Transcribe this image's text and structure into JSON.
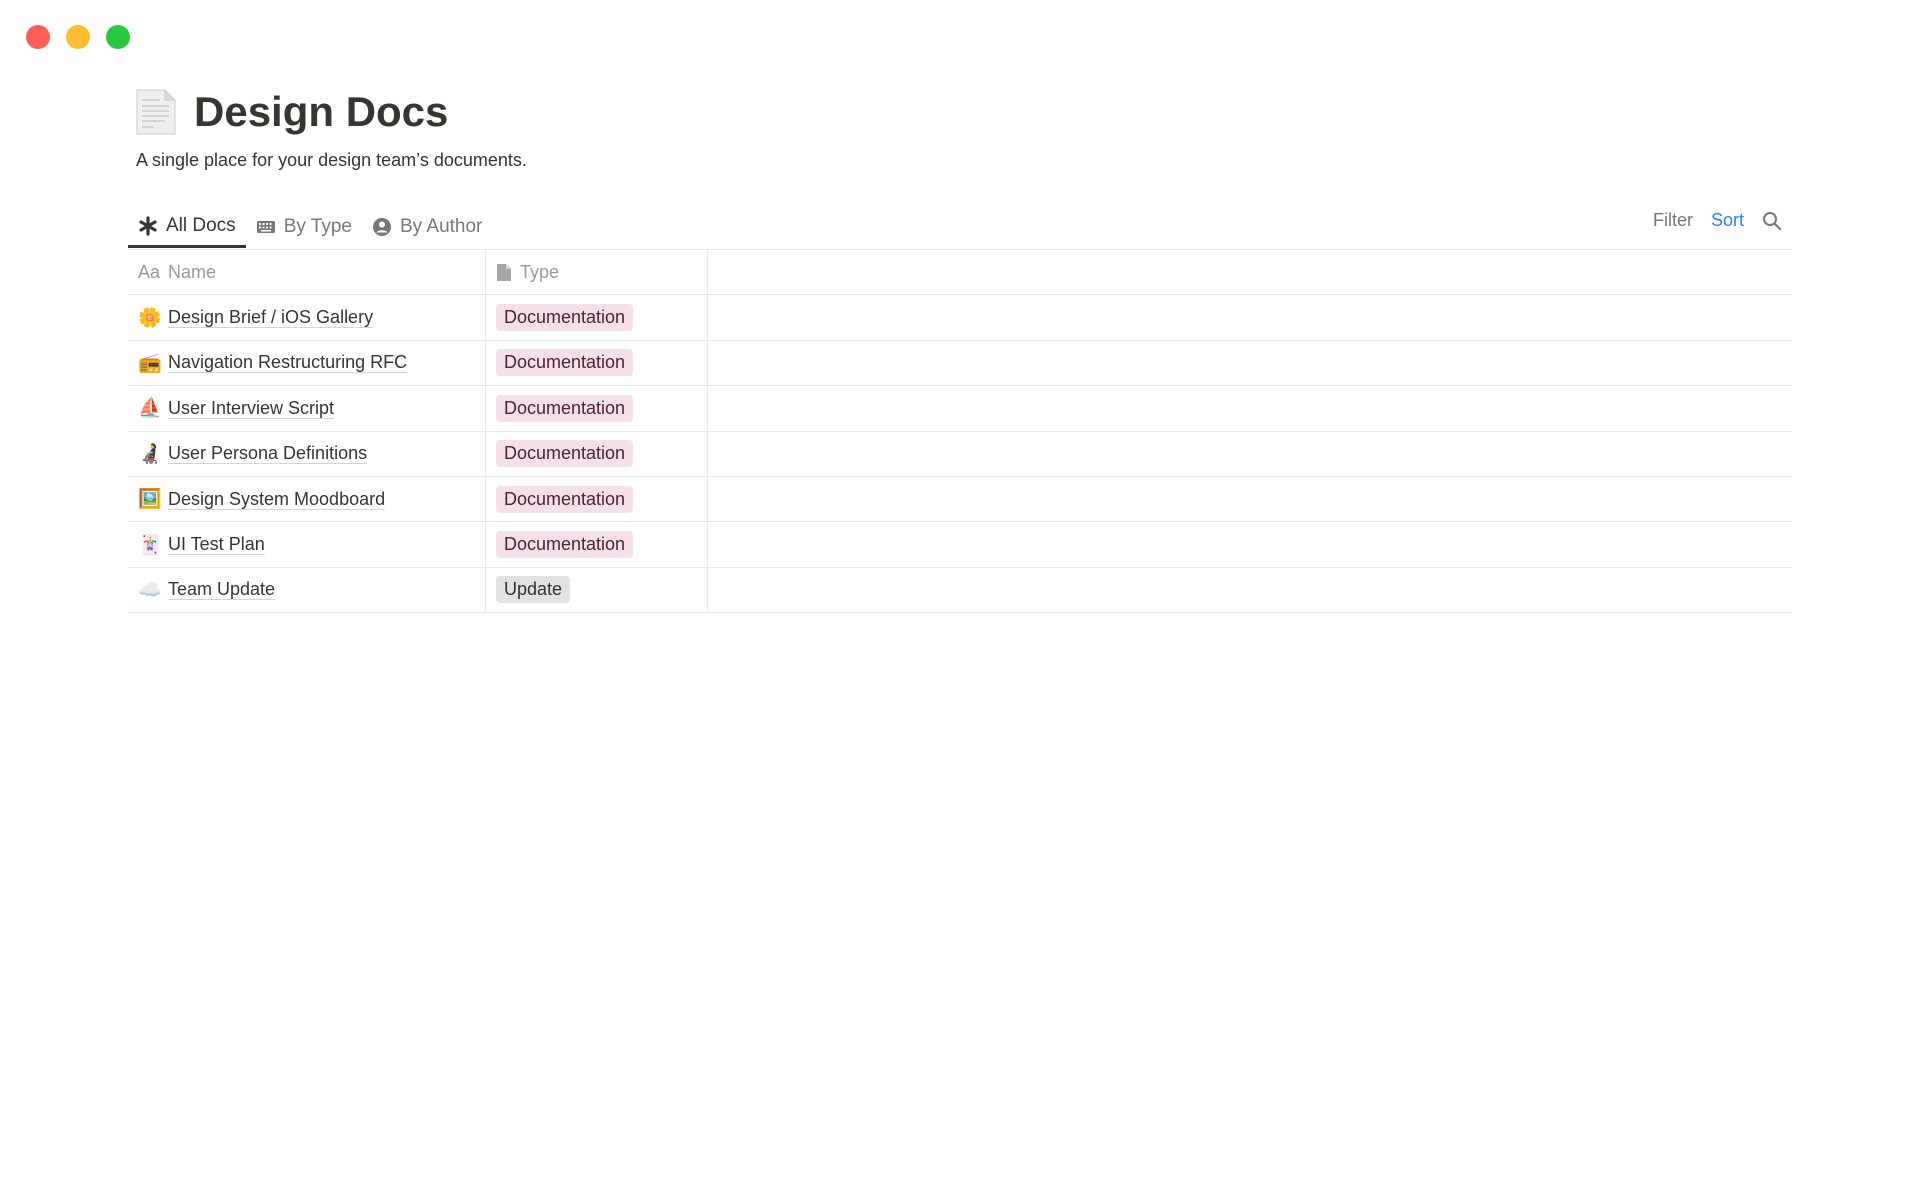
{
  "window": {
    "controls": [
      {
        "name": "close",
        "color": "#ff5f57"
      },
      {
        "name": "minimize",
        "color": "#febc2e"
      },
      {
        "name": "maximize",
        "color": "#28c840"
      }
    ]
  },
  "page": {
    "icon": "page-facing-up-icon",
    "title": "Design Docs",
    "subtitle": "A single place for your design team’s documents."
  },
  "tabs": [
    {
      "label": "All Docs",
      "icon": "asterisk-icon",
      "active": true
    },
    {
      "label": "By Type",
      "icon": "keyboard-icon"
    },
    {
      "label": "By Author",
      "icon": "user-circle-icon"
    }
  ],
  "actions": {
    "filter": "Filter",
    "sort": "Sort",
    "search_icon": "search-icon"
  },
  "table": {
    "columns": [
      {
        "label": "Name",
        "icon": "Aa"
      },
      {
        "label": "Type",
        "icon": "document-icon"
      }
    ],
    "rows": [
      {
        "emoji": "🌼",
        "name": "Design Brief / iOS Gallery",
        "type": "Documentation"
      },
      {
        "emoji": "📻",
        "name": "Navigation Restructuring RFC",
        "type": "Documentation"
      },
      {
        "emoji": "⛵",
        "name": "User Interview Script",
        "type": "Documentation"
      },
      {
        "emoji": "👩‍🦼",
        "name": "User Persona Definitions",
        "type": "Documentation"
      },
      {
        "emoji": "🖼️",
        "name": "Design System Moodboard",
        "type": "Documentation"
      },
      {
        "emoji": "🃏",
        "name": "UI Test Plan",
        "type": "Documentation"
      },
      {
        "emoji": "☁️",
        "name": "Team Update",
        "type": "Update"
      }
    ],
    "type_colors": {
      "Documentation": "#f5e0e9",
      "Update": "#e3e2e0"
    }
  }
}
